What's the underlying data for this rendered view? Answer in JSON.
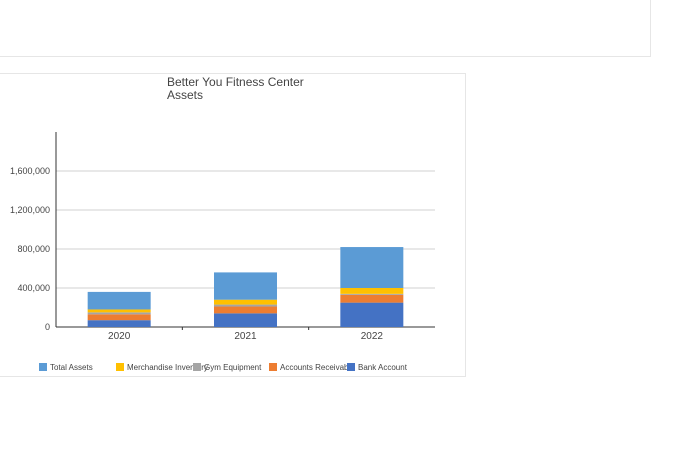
{
  "chart_data": {
    "type": "bar",
    "stacked": true,
    "title_lines": [
      "Better You Fitness Center",
      "Assets"
    ],
    "categories": [
      "2020",
      "2021",
      "2022"
    ],
    "yticks": [
      "0",
      "400,000",
      "800,000",
      "1,200,000",
      "1,600,000"
    ],
    "ylim": [
      0,
      2000000
    ],
    "grid": true,
    "legend_position": "bottom",
    "series": [
      {
        "name": "Bank Account",
        "color": "#4472c4",
        "values": [
          70000,
          140000,
          250000
        ]
      },
      {
        "name": "Accounts Receivable",
        "color": "#ed7d31",
        "values": [
          60000,
          70000,
          80000
        ]
      },
      {
        "name": "Gym Equipment",
        "color": "#a5a5a5",
        "values": [
          20000,
          20000,
          10000
        ]
      },
      {
        "name": "Merchandise Inventory",
        "color": "#ffc000",
        "values": [
          30000,
          50000,
          60000
        ]
      },
      {
        "name": "Total Assets",
        "color": "#5b9bd5",
        "values": [
          180000,
          280000,
          420000
        ]
      }
    ],
    "legend": [
      {
        "label": "Total Assets",
        "color": "#5b9bd5"
      },
      {
        "label": "Merchandise Inventory",
        "color": "#ffc000"
      },
      {
        "label": "Gym Equipment",
        "color": "#a5a5a5"
      },
      {
        "label": "Accounts Receivable",
        "color": "#ed7d31"
      },
      {
        "label": "Bank Account",
        "color": "#4472c4"
      }
    ]
  }
}
